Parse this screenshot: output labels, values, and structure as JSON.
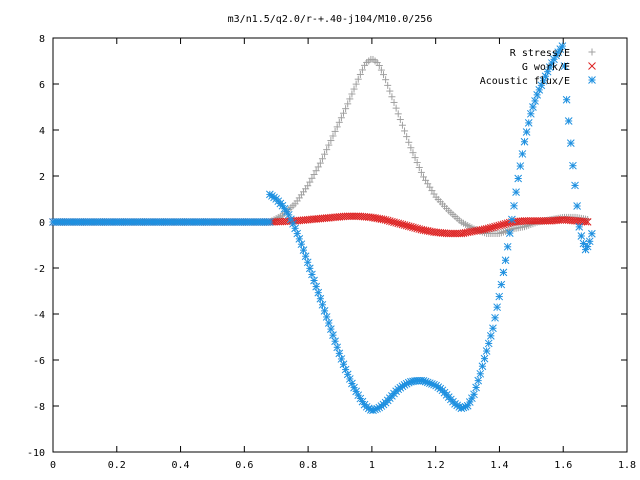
{
  "chart_data": {
    "type": "scatter",
    "title": "m3/n1.5/q2.0/r-+.40-j104/M10.0/256",
    "xlabel": "",
    "ylabel": "",
    "xlim": [
      0,
      1.8
    ],
    "ylim": [
      -10,
      8
    ],
    "x_ticks": [
      "0",
      "0.2",
      "0.4",
      "0.6",
      "0.8",
      "1",
      "1.2",
      "1.4",
      "1.6",
      "1.8"
    ],
    "y_ticks": [
      "8",
      "6",
      "4",
      "2",
      "0",
      "-2",
      "-4",
      "-6",
      "-8",
      "-10"
    ],
    "grid": false,
    "legend_position": "top-right",
    "series": [
      {
        "name": "R stress/E",
        "marker": "plus",
        "color": "#a0a0a0",
        "points": [
          [
            0,
            0
          ],
          [
            0.68,
            0.0
          ],
          [
            0.72,
            0.3
          ],
          [
            0.76,
            0.8
          ],
          [
            0.8,
            1.6
          ],
          [
            0.84,
            2.6
          ],
          [
            0.88,
            3.8
          ],
          [
            0.92,
            5.0
          ],
          [
            0.96,
            6.3
          ],
          [
            0.98,
            6.9
          ],
          [
            1.0,
            7.1
          ],
          [
            1.02,
            6.9
          ],
          [
            1.04,
            6.3
          ],
          [
            1.08,
            4.8
          ],
          [
            1.12,
            3.3
          ],
          [
            1.16,
            2.0
          ],
          [
            1.2,
            1.1
          ],
          [
            1.24,
            0.5
          ],
          [
            1.28,
            0.0
          ],
          [
            1.32,
            -0.3
          ],
          [
            1.36,
            -0.5
          ],
          [
            1.4,
            -0.5
          ],
          [
            1.44,
            -0.3
          ],
          [
            1.48,
            -0.2
          ],
          [
            1.52,
            0.0
          ],
          [
            1.56,
            0.1
          ],
          [
            1.6,
            0.2
          ],
          [
            1.64,
            0.2
          ],
          [
            1.68,
            0.1
          ]
        ]
      },
      {
        "name": "G work/E",
        "marker": "cross",
        "color": "#dd2222",
        "points": [
          [
            0,
            0
          ],
          [
            0.68,
            0.0
          ],
          [
            0.72,
            0.02
          ],
          [
            0.76,
            0.05
          ],
          [
            0.8,
            0.1
          ],
          [
            0.84,
            0.15
          ],
          [
            0.88,
            0.2
          ],
          [
            0.92,
            0.25
          ],
          [
            0.96,
            0.25
          ],
          [
            1.0,
            0.2
          ],
          [
            1.04,
            0.1
          ],
          [
            1.08,
            -0.05
          ],
          [
            1.12,
            -0.2
          ],
          [
            1.16,
            -0.35
          ],
          [
            1.2,
            -0.45
          ],
          [
            1.24,
            -0.5
          ],
          [
            1.28,
            -0.5
          ],
          [
            1.32,
            -0.4
          ],
          [
            1.36,
            -0.3
          ],
          [
            1.4,
            -0.15
          ],
          [
            1.44,
            0.0
          ],
          [
            1.48,
            0.05
          ],
          [
            1.52,
            0.05
          ],
          [
            1.56,
            0.05
          ],
          [
            1.6,
            0.1
          ],
          [
            1.64,
            0.05
          ],
          [
            1.68,
            0.0
          ]
        ]
      },
      {
        "name": "Acoustic flux/E",
        "marker": "star",
        "color": "#1e90e0",
        "points": [
          [
            0,
            0
          ],
          [
            0.68,
            1.2
          ],
          [
            0.7,
            1.0
          ],
          [
            0.72,
            0.7
          ],
          [
            0.74,
            0.3
          ],
          [
            0.76,
            -0.3
          ],
          [
            0.78,
            -1.0
          ],
          [
            0.8,
            -1.8
          ],
          [
            0.82,
            -2.6
          ],
          [
            0.84,
            -3.4
          ],
          [
            0.86,
            -4.2
          ],
          [
            0.88,
            -5.0
          ],
          [
            0.9,
            -5.8
          ],
          [
            0.92,
            -6.5
          ],
          [
            0.94,
            -7.1
          ],
          [
            0.96,
            -7.6
          ],
          [
            0.98,
            -8.0
          ],
          [
            1.0,
            -8.2
          ],
          [
            1.02,
            -8.1
          ],
          [
            1.04,
            -7.9
          ],
          [
            1.06,
            -7.6
          ],
          [
            1.08,
            -7.3
          ],
          [
            1.1,
            -7.1
          ],
          [
            1.12,
            -6.95
          ],
          [
            1.14,
            -6.9
          ],
          [
            1.16,
            -6.9
          ],
          [
            1.18,
            -7.0
          ],
          [
            1.2,
            -7.1
          ],
          [
            1.22,
            -7.3
          ],
          [
            1.24,
            -7.6
          ],
          [
            1.26,
            -7.9
          ],
          [
            1.28,
            -8.1
          ],
          [
            1.3,
            -8.0
          ],
          [
            1.32,
            -7.5
          ],
          [
            1.34,
            -6.6
          ],
          [
            1.36,
            -5.6
          ],
          [
            1.38,
            -4.6
          ],
          [
            1.4,
            -3.2
          ],
          [
            1.42,
            -1.6
          ],
          [
            1.44,
            0.2
          ],
          [
            1.46,
            2.0
          ],
          [
            1.48,
            3.6
          ],
          [
            1.5,
            4.8
          ],
          [
            1.52,
            5.6
          ],
          [
            1.54,
            6.2
          ],
          [
            1.56,
            6.8
          ],
          [
            1.58,
            7.3
          ],
          [
            1.6,
            7.7
          ],
          [
            1.61,
            5.4
          ],
          [
            1.62,
            4.0
          ],
          [
            1.63,
            2.5
          ],
          [
            1.64,
            1.2
          ],
          [
            1.65,
            -0.2
          ],
          [
            1.66,
            -0.8
          ],
          [
            1.67,
            -1.2
          ],
          [
            1.68,
            -1.0
          ],
          [
            1.69,
            -0.5
          ]
        ]
      }
    ]
  }
}
